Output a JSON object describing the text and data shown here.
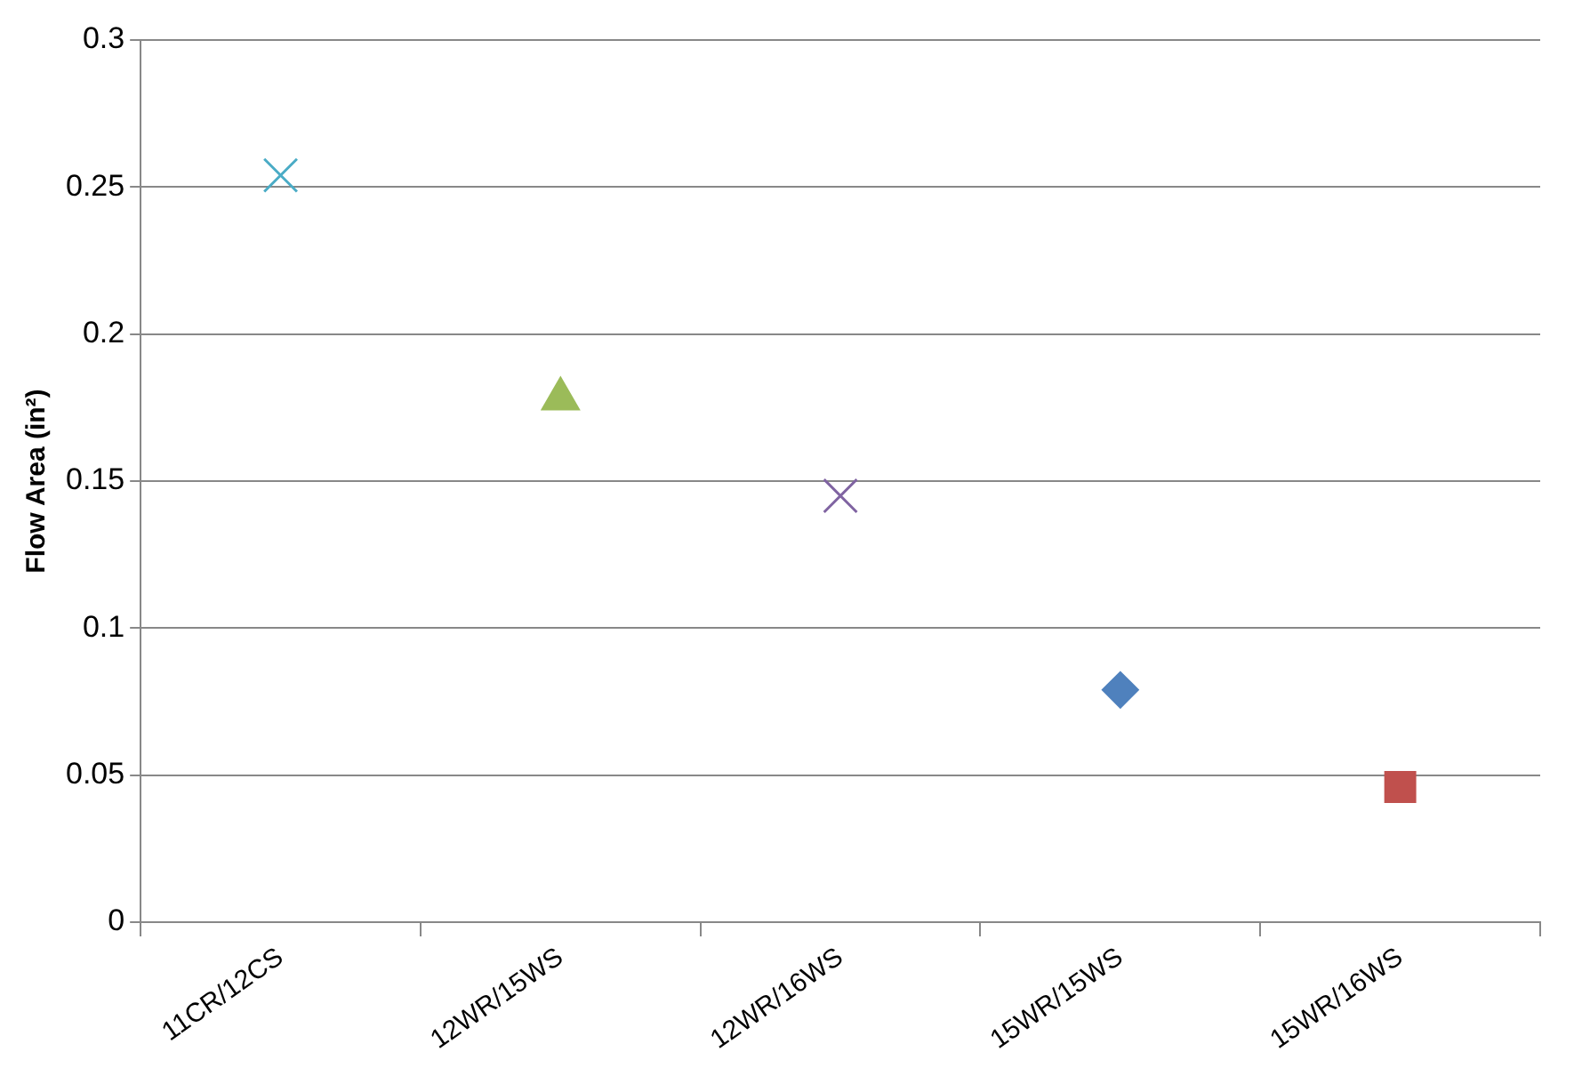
{
  "chart_data": {
    "type": "scatter",
    "ylabel": "Flow Area (in²)",
    "categories": [
      "11CR/12CS",
      "12WR/15WS",
      "12WR/16WS",
      "15WR/15WS",
      "15WR/16WS"
    ],
    "series": [
      {
        "color": "#4bacc6",
        "marker": "cross",
        "values": [
          0.254,
          null,
          null,
          null,
          null
        ]
      },
      {
        "color": "#9bbb59",
        "marker": "triangle",
        "values": [
          null,
          0.178,
          null,
          null,
          null
        ]
      },
      {
        "color": "#8064a2",
        "marker": "cross",
        "values": [
          null,
          null,
          0.145,
          null,
          null
        ]
      },
      {
        "color": "#4f81bd",
        "marker": "diamond",
        "values": [
          null,
          null,
          null,
          0.079,
          null
        ]
      },
      {
        "color": "#c0504d",
        "marker": "square",
        "values": [
          null,
          null,
          null,
          null,
          0.046
        ]
      }
    ],
    "ylim": [
      0,
      0.3
    ],
    "yticks": [
      0,
      0.05,
      0.1,
      0.15,
      0.2,
      0.25,
      0.3
    ],
    "grid": "y",
    "legend": false
  }
}
